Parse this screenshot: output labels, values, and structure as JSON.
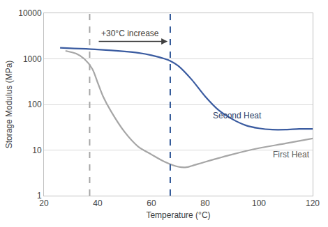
{
  "chart_data": {
    "type": "line",
    "x_label": "Temperature (°C)",
    "y_label": "Storage Modulus (MPa)",
    "log": "y",
    "grid": "y",
    "xlim": [
      20,
      120
    ],
    "xticks": [
      20,
      40,
      60,
      80,
      100,
      120
    ],
    "ylim": [
      1,
      10000
    ],
    "yticks": [
      1,
      10,
      100,
      1000,
      10000
    ],
    "series": [
      {
        "name": "Second Heat",
        "color": "#3a5ba0",
        "x": [
          26,
          30,
          40,
          50,
          55,
          60,
          65,
          67,
          70,
          75,
          80,
          85,
          90,
          95,
          100,
          105,
          110,
          115,
          120
        ],
        "values": [
          1750,
          1700,
          1600,
          1450,
          1350,
          1200,
          1000,
          900,
          700,
          350,
          150,
          75,
          48,
          35,
          30,
          28,
          28,
          29,
          29
        ]
      },
      {
        "name": "First Heat",
        "color": "#a6a6a6",
        "x": [
          28,
          32,
          35,
          38,
          40,
          42,
          45,
          50,
          55,
          60,
          65,
          70,
          73,
          75,
          80,
          90,
          100,
          110,
          120
        ],
        "values": [
          1500,
          1300,
          1000,
          600,
          300,
          150,
          70,
          25,
          12,
          8,
          5.5,
          4.3,
          4.2,
          4.5,
          5.5,
          8,
          11,
          14,
          18
        ]
      }
    ],
    "vlines": [
      {
        "x": 37,
        "color": "#a6a6a6",
        "line_style": "dash"
      },
      {
        "x": 67,
        "color": "#2f5597",
        "line_style": "dash"
      }
    ],
    "annotations": [
      {
        "text": "+30°C increase",
        "x": 52,
        "y": 3600,
        "color": "#404040"
      },
      {
        "text": "Second Heat",
        "x": 92,
        "y": 58,
        "color": "#2f3f66"
      },
      {
        "text": "First Heat",
        "x": 112,
        "y": 8,
        "color": "#595959"
      }
    ],
    "arrows": [
      {
        "from": [
          40,
          2400
        ],
        "to": [
          66,
          2400
        ],
        "color": "#404040"
      }
    ]
  }
}
